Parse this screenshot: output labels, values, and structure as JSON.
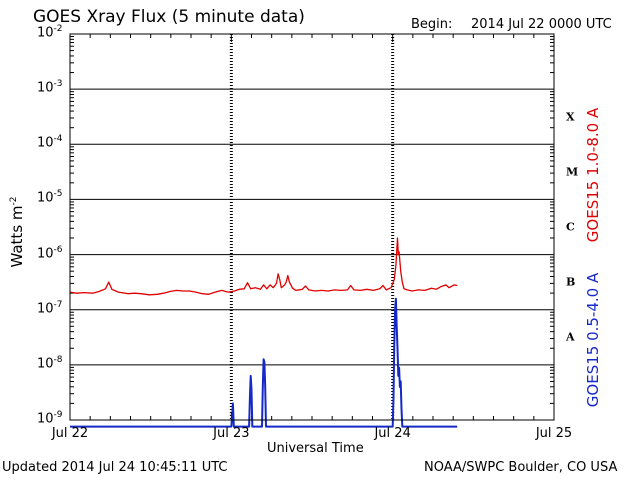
{
  "header": {
    "title": "GOES Xray Flux (5 minute data)",
    "begin_label": "Begin:",
    "begin_value": "2014 Jul 22 0000 UTC"
  },
  "footer": {
    "updated": "Updated 2014 Jul 24 10:45:11 UTC",
    "credit": "NOAA/SWPC Boulder, CO USA"
  },
  "chart_data": {
    "type": "line",
    "title": "GOES Xray Flux (5 minute data)",
    "xlabel": "Universal Time",
    "ylabel": "Watts m",
    "ylabel_sup": "-2",
    "y_scale": "log",
    "ylim": [
      1e-09,
      0.01
    ],
    "xlim_days": [
      0,
      3
    ],
    "grid": true,
    "x_ticks": [
      {
        "day": 0,
        "label": "Jul 22"
      },
      {
        "day": 1,
        "label": "Jul 23"
      },
      {
        "day": 2,
        "label": "Jul 24"
      },
      {
        "day": 3,
        "label": "Jul 25"
      }
    ],
    "y_ticks": [
      {
        "exp": -2,
        "base": "10",
        "sup": "-2"
      },
      {
        "exp": -3,
        "base": "10",
        "sup": "-3"
      },
      {
        "exp": -4,
        "base": "10",
        "sup": "-4"
      },
      {
        "exp": -5,
        "base": "10",
        "sup": "-5"
      },
      {
        "exp": -6,
        "base": "10",
        "sup": "-6"
      },
      {
        "exp": -7,
        "base": "10",
        "sup": "-7"
      },
      {
        "exp": -8,
        "base": "10",
        "sup": "-8"
      },
      {
        "exp": -9,
        "base": "10",
        "sup": "-9"
      }
    ],
    "flare_classes": [
      {
        "label": "X",
        "exp": -3.5
      },
      {
        "label": "M",
        "exp": -4.5
      },
      {
        "label": "C",
        "exp": -5.5
      },
      {
        "label": "B",
        "exp": -6.5
      },
      {
        "label": "A",
        "exp": -7.5
      }
    ],
    "colors": {
      "long": "#e00000",
      "short": "#1528c8",
      "grid": "#000000"
    },
    "series": [
      {
        "name": "GOES15 1.0-8.0 A",
        "color": "#e00000",
        "points": [
          [
            0.0,
            -6.68
          ],
          [
            0.04,
            -6.7
          ],
          [
            0.09,
            -6.69
          ],
          [
            0.14,
            -6.7
          ],
          [
            0.18,
            -6.67
          ],
          [
            0.22,
            -6.62
          ],
          [
            0.24,
            -6.5
          ],
          [
            0.26,
            -6.63
          ],
          [
            0.3,
            -6.68
          ],
          [
            0.36,
            -6.71
          ],
          [
            0.4,
            -6.7
          ],
          [
            0.44,
            -6.71
          ],
          [
            0.49,
            -6.73
          ],
          [
            0.54,
            -6.72
          ],
          [
            0.58,
            -6.7
          ],
          [
            0.62,
            -6.67
          ],
          [
            0.66,
            -6.65
          ],
          [
            0.7,
            -6.66
          ],
          [
            0.74,
            -6.66
          ],
          [
            0.78,
            -6.68
          ],
          [
            0.82,
            -6.71
          ],
          [
            0.86,
            -6.72
          ],
          [
            0.9,
            -6.68
          ],
          [
            0.94,
            -6.65
          ],
          [
            0.98,
            -6.68
          ],
          [
            1.02,
            -6.66
          ],
          [
            1.05,
            -6.63
          ],
          [
            1.08,
            -6.62
          ],
          [
            1.1,
            -6.51
          ],
          [
            1.12,
            -6.62
          ],
          [
            1.15,
            -6.6
          ],
          [
            1.18,
            -6.63
          ],
          [
            1.2,
            -6.55
          ],
          [
            1.22,
            -6.62
          ],
          [
            1.24,
            -6.55
          ],
          [
            1.26,
            -6.6
          ],
          [
            1.28,
            -6.52
          ],
          [
            1.29,
            -6.35
          ],
          [
            1.3,
            -6.45
          ],
          [
            1.31,
            -6.6
          ],
          [
            1.33,
            -6.55
          ],
          [
            1.34,
            -6.5
          ],
          [
            1.35,
            -6.38
          ],
          [
            1.36,
            -6.5
          ],
          [
            1.38,
            -6.61
          ],
          [
            1.4,
            -6.65
          ],
          [
            1.44,
            -6.63
          ],
          [
            1.46,
            -6.57
          ],
          [
            1.48,
            -6.64
          ],
          [
            1.52,
            -6.66
          ],
          [
            1.56,
            -6.65
          ],
          [
            1.6,
            -6.66
          ],
          [
            1.64,
            -6.64
          ],
          [
            1.68,
            -6.65
          ],
          [
            1.72,
            -6.64
          ],
          [
            1.74,
            -6.56
          ],
          [
            1.76,
            -6.64
          ],
          [
            1.8,
            -6.65
          ],
          [
            1.84,
            -6.63
          ],
          [
            1.88,
            -6.65
          ],
          [
            1.92,
            -6.62
          ],
          [
            1.94,
            -6.56
          ],
          [
            1.96,
            -6.64
          ],
          [
            1.99,
            -6.6
          ],
          [
            2.01,
            -6.45
          ],
          [
            2.02,
            -6.2
          ],
          [
            2.03,
            -5.7
          ],
          [
            2.035,
            -6.0
          ],
          [
            2.04,
            -5.95
          ],
          [
            2.05,
            -6.3
          ],
          [
            2.06,
            -6.5
          ],
          [
            2.07,
            -6.62
          ],
          [
            2.09,
            -6.64
          ],
          [
            2.12,
            -6.66
          ],
          [
            2.16,
            -6.64
          ],
          [
            2.2,
            -6.65
          ],
          [
            2.24,
            -6.61
          ],
          [
            2.27,
            -6.63
          ],
          [
            2.3,
            -6.58
          ],
          [
            2.33,
            -6.55
          ],
          [
            2.35,
            -6.6
          ],
          [
            2.38,
            -6.55
          ],
          [
            2.4,
            -6.56
          ]
        ]
      },
      {
        "name": "GOES15 0.5-4.0 A",
        "color": "#1528c8",
        "points": [
          [
            0.0,
            -9.12
          ],
          [
            0.99,
            -9.12
          ],
          [
            1.0,
            -9.12
          ],
          [
            1.005,
            -8.95
          ],
          [
            1.01,
            -8.7
          ],
          [
            1.015,
            -9.12
          ],
          [
            1.11,
            -9.12
          ],
          [
            1.115,
            -8.6
          ],
          [
            1.12,
            -8.2
          ],
          [
            1.125,
            -8.45
          ],
          [
            1.13,
            -9.12
          ],
          [
            1.19,
            -9.12
          ],
          [
            1.195,
            -8.4
          ],
          [
            1.2,
            -7.9
          ],
          [
            1.205,
            -7.95
          ],
          [
            1.21,
            -8.4
          ],
          [
            1.215,
            -9.12
          ],
          [
            1.99,
            -9.12
          ],
          [
            2.0,
            -9.12
          ],
          [
            2.005,
            -8.6
          ],
          [
            2.01,
            -7.6
          ],
          [
            2.015,
            -7.0
          ],
          [
            2.02,
            -6.8
          ],
          [
            2.025,
            -7.3
          ],
          [
            2.03,
            -7.7
          ],
          [
            2.035,
            -8.2
          ],
          [
            2.04,
            -8.05
          ],
          [
            2.045,
            -8.4
          ],
          [
            2.05,
            -8.3
          ],
          [
            2.055,
            -8.8
          ],
          [
            2.06,
            -9.12
          ],
          [
            2.4,
            -9.12
          ]
        ]
      }
    ]
  }
}
